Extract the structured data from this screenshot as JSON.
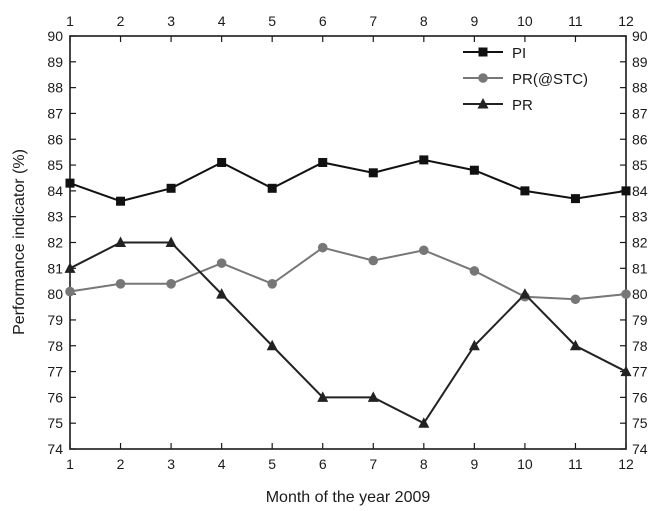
{
  "chart_data": {
    "type": "line",
    "title": "",
    "xlabel": "Month of the year 2009",
    "ylabel": "Performance indicator (%)",
    "x": [
      1,
      2,
      3,
      4,
      5,
      6,
      7,
      8,
      9,
      10,
      11,
      12
    ],
    "xlim": [
      1,
      12
    ],
    "ylim": [
      74,
      90
    ],
    "y_ticks": [
      74,
      75,
      76,
      77,
      78,
      79,
      80,
      81,
      82,
      83,
      84,
      85,
      86,
      87,
      88,
      89,
      90
    ],
    "grid": false,
    "legend_position": "top-right",
    "series": [
      {
        "name": "PI",
        "marker": "square",
        "color": "#111111",
        "values": [
          84.3,
          83.6,
          84.1,
          85.1,
          84.1,
          85.1,
          84.7,
          85.2,
          84.8,
          84.0,
          83.7,
          84.0
        ]
      },
      {
        "name": "PR(@STC)",
        "marker": "circle",
        "color": "#777777",
        "values": [
          80.1,
          80.4,
          80.4,
          81.2,
          80.4,
          81.8,
          81.3,
          81.7,
          80.9,
          79.9,
          79.8,
          80.0
        ]
      },
      {
        "name": "PR",
        "marker": "triangle",
        "color": "#222222",
        "values": [
          81.0,
          82.0,
          82.0,
          80.0,
          78.0,
          76.0,
          76.0,
          75.0,
          78.0,
          80.0,
          78.0,
          77.0
        ]
      }
    ]
  }
}
